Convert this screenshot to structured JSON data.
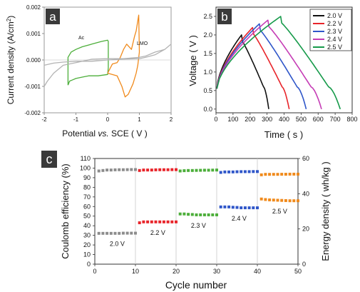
{
  "chart_data": [
    {
      "panel": "a",
      "type": "line",
      "xlabel": "Potential vs. SCE ( V )",
      "xlabel_parts": [
        "Potential ",
        "vs.",
        " SCE ( V )"
      ],
      "ylabel": "Current density (A/cm2)",
      "ylabel_parts": [
        "Current density (A/cm",
        "2",
        ")"
      ],
      "xlim": [
        -2,
        2
      ],
      "ylim": [
        -0.002,
        0.002
      ],
      "xticks": [
        "-2",
        "-1",
        "0",
        "1",
        "2"
      ],
      "yticks": [
        "0.002",
        "0.001",
        "0.000",
        "-0.001",
        "-0.002"
      ],
      "annotations": [
        "Ac",
        "LMO"
      ],
      "series": [
        {
          "name": "Ac",
          "color": "#4cae3a",
          "x": [
            -1.25,
            -1.2,
            -1.1,
            -1.0,
            -0.8,
            -0.6,
            -0.3,
            0.0,
            0.02,
            0.02,
            0.0,
            -0.2,
            -0.5,
            -0.8,
            -1.0,
            -1.15,
            -1.25,
            -1.25
          ],
          "y": [
            -0.00095,
            -0.0008,
            -0.00075,
            -0.0007,
            -0.00065,
            -0.0006,
            -0.0006,
            -0.00055,
            -0.0003,
            0.0007,
            0.00075,
            0.0007,
            0.0006,
            0.0005,
            0.0004,
            0.0003,
            0.0001,
            -0.00095
          ]
        },
        {
          "name": "LMO",
          "color": "#f08a1c",
          "x": [
            0.0,
            0.3,
            0.45,
            0.55,
            0.65,
            0.8,
            0.9,
            0.95,
            1.0,
            0.98,
            0.9,
            0.85,
            0.75,
            0.6,
            0.5,
            0.4,
            0.3,
            0.15,
            0.0
          ],
          "y": [
            -0.0005,
            -0.0006,
            -0.001,
            -0.0014,
            -0.0013,
            -0.0009,
            -0.0005,
            -0.0002,
            0.0003,
            0.0017,
            0.0011,
            0.0009,
            0.0004,
            0.0006,
            0.0004,
            0.0001,
            -0.0001,
            -0.00015,
            -0.0005
          ]
        },
        {
          "name": "",
          "color": "#b3b3b3",
          "x": [
            -2.0,
            -1.9,
            -1.7,
            -1.4,
            -1.0,
            -0.5,
            0.0,
            0.5,
            1.0,
            1.2,
            1.5,
            1.8,
            2.0,
            1.8,
            1.5,
            1.2,
            1.0,
            0.5,
            0.0,
            -0.5,
            -1.0,
            -1.4,
            -1.7,
            -2.0
          ],
          "y": [
            -0.001,
            -0.0008,
            -0.0005,
            -0.0002,
            -0.0001,
            3e-05,
            5e-05,
            5e-05,
            0.0001,
            0.00015,
            0.0003,
            0.0004,
            0.0006,
            0.0004,
            0.0002,
            0.0001,
            5e-05,
            3e-05,
            0.0,
            -5e-05,
            -5e-05,
            -8e-05,
            -0.00012,
            -0.0002
          ]
        }
      ]
    },
    {
      "panel": "b",
      "type": "line",
      "xlabel": "Time ( s )",
      "ylabel": "Voltage ( V )",
      "xlim": [
        0,
        800
      ],
      "ylim": [
        -0.1,
        2.75
      ],
      "xticks": [
        "0",
        "100",
        "200",
        "300",
        "400",
        "500",
        "600",
        "700",
        "800"
      ],
      "yticks": [
        "0.0",
        "0.5",
        "1.0",
        "1.5",
        "2.0",
        "2.5"
      ],
      "legend_position": "top-right",
      "series": [
        {
          "name": "2.0 V",
          "color": "#111111",
          "peak_time": 150,
          "peak_voltage": 2.0,
          "end_time": 310
        },
        {
          "name": "2.2 V",
          "color": "#e8242a",
          "peak_time": 215,
          "peak_voltage": 2.2,
          "end_time": 430
        },
        {
          "name": "2.3 V",
          "color": "#2f56c9",
          "peak_time": 255,
          "peak_voltage": 2.3,
          "end_time": 530
        },
        {
          "name": "2.4 V",
          "color": "#c53cb5",
          "peak_time": 305,
          "peak_voltage": 2.4,
          "end_time": 620
        },
        {
          "name": "2.5 V",
          "color": "#169a4a",
          "peak_time": 380,
          "peak_voltage": 2.5,
          "end_time": 730
        }
      ]
    },
    {
      "panel": "c",
      "type": "scatter",
      "xlabel": "Cycle number",
      "ylabel": "Coulomb efficiency (%)",
      "y2label": "Energy density ( wh/kg )",
      "xlim": [
        0,
        50
      ],
      "ylim": [
        0,
        110
      ],
      "y2lim": [
        0,
        60
      ],
      "xticks": [
        "0",
        "10",
        "20",
        "30",
        "40",
        "50"
      ],
      "yticks": [
        "0",
        "10",
        "20",
        "30",
        "40",
        "50",
        "60",
        "70",
        "80",
        "90",
        "100",
        "110"
      ],
      "y2ticks": [
        "0",
        "20",
        "40",
        "60"
      ],
      "groups": [
        {
          "label": "2.0 V",
          "color": "#8c8c8c",
          "cycle_start": 1,
          "cycle_end": 10,
          "efficiency": [
            97,
            97.5,
            98,
            98,
            98.2,
            98.3,
            98.3,
            98.4,
            98.5,
            98.5
          ],
          "energy_density": [
            17.5,
            17.5,
            17.5,
            17.5,
            17.5,
            17.5,
            17.6,
            17.6,
            17.6,
            17.6
          ]
        },
        {
          "label": "2.2 V",
          "color": "#e8242a",
          "cycle_start": 11,
          "cycle_end": 20,
          "efficiency": [
            97.5,
            98,
            98,
            98,
            98.2,
            98.3,
            98.3,
            98.3,
            98.4,
            98.4
          ],
          "energy_density": [
            23.5,
            24,
            24,
            24,
            24,
            24,
            24,
            24,
            24,
            24
          ]
        },
        {
          "label": "2.3 V",
          "color": "#4cae3a",
          "cycle_start": 21,
          "cycle_end": 30,
          "efficiency": [
            97,
            97.3,
            97.5,
            97.5,
            97.6,
            97.7,
            97.8,
            97.8,
            97.9,
            98
          ],
          "energy_density": [
            28.5,
            28.5,
            28.3,
            28.2,
            28,
            28,
            28,
            28,
            28,
            28
          ]
        },
        {
          "label": "2.4 V",
          "color": "#2f56c9",
          "cycle_start": 31,
          "cycle_end": 40,
          "efficiency": [
            95.5,
            96,
            96,
            96,
            96.2,
            96.3,
            96.3,
            96.3,
            96.4,
            96.4
          ],
          "energy_density": [
            32.5,
            32.5,
            32.5,
            32.3,
            32.2,
            32,
            32,
            32,
            32,
            32
          ]
        },
        {
          "label": "2.5 V",
          "color": "#f08a1c",
          "cycle_start": 41,
          "cycle_end": 50,
          "efficiency": [
            93,
            93.5,
            93.5,
            93.5,
            93.5,
            93.6,
            93.6,
            93.7,
            93.7,
            93.7
          ],
          "energy_density": [
            37,
            36.7,
            36.5,
            36.4,
            36.3,
            36.2,
            36.1,
            36,
            36,
            36
          ]
        }
      ]
    }
  ],
  "panels": {
    "a": "a",
    "b": "b",
    "c": "c"
  }
}
